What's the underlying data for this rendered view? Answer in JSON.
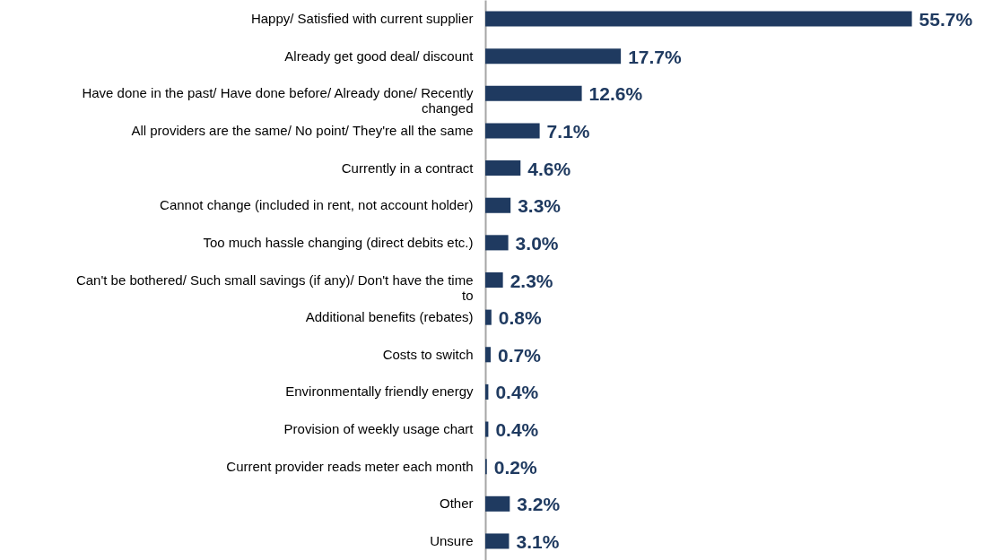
{
  "chart_data": {
    "type": "bar",
    "orientation": "horizontal",
    "categories": [
      "Happy/ Satisfied with current supplier",
      "Already get good deal/ discount",
      "Have done in the past/ Have done before/ Already done/ Recently changed",
      "All providers are the same/ No point/ They're all the same",
      "Currently in a contract",
      "Cannot change (included in rent, not account holder)",
      "Too much hassle changing (direct debits etc.)",
      "Can't be bothered/ Such small savings (if any)/ Don't have the time to",
      "Additional benefits (rebates)",
      "Costs to switch",
      "Environmentally friendly energy",
      "Provision of weekly usage chart",
      "Current provider reads meter each month",
      "Other",
      "Unsure"
    ],
    "values": [
      55.7,
      17.7,
      12.6,
      7.1,
      4.6,
      3.3,
      3.0,
      2.3,
      0.8,
      0.7,
      0.4,
      0.4,
      0.2,
      3.2,
      3.1
    ],
    "value_labels": [
      "55.7%",
      "17.7%",
      "12.6%",
      "7.1%",
      "4.6%",
      "3.3%",
      "3.0%",
      "2.3%",
      "0.8%",
      "0.7%",
      "0.4%",
      "0.4%",
      "0.2%",
      "3.2%",
      "3.1%"
    ],
    "color": "#1f3a60"
  }
}
